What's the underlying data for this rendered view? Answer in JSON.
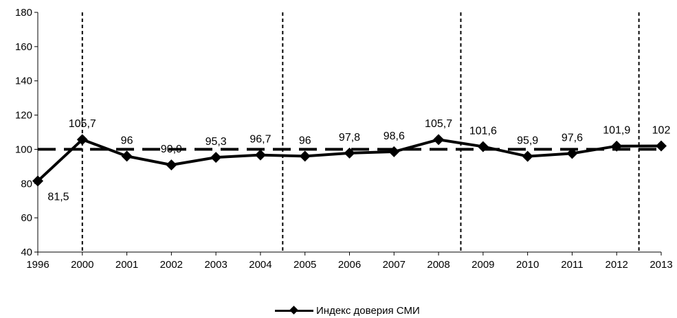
{
  "chart_data": {
    "type": "line",
    "categories": [
      "1996",
      "2000",
      "2001",
      "2002",
      "2003",
      "2004",
      "2005",
      "2006",
      "2007",
      "2008",
      "2009",
      "2010",
      "2011",
      "2012",
      "2013"
    ],
    "series": [
      {
        "name": "Индекс доверия СМИ",
        "values": [
          81.5,
          105.7,
          96,
          90.9,
          95.3,
          96.7,
          96,
          97.8,
          98.6,
          105.7,
          101.6,
          95.9,
          97.6,
          101.9,
          102
        ],
        "labels": [
          "81,5",
          "105,7",
          "96",
          "90,9",
          "95,3",
          "96,7",
          "96",
          "97,8",
          "98,6",
          "105,7",
          "101,6",
          "95,9",
          "97,6",
          "101,9",
          "102"
        ],
        "color": "#000000",
        "marker": "diamond"
      }
    ],
    "ylim": [
      40,
      180
    ],
    "yticks": [
      40,
      60,
      80,
      100,
      120,
      140,
      160,
      180
    ],
    "reference_line": {
      "y": 100,
      "style": "long-dash"
    },
    "vertical_dividers_after": [
      "1996",
      "2004",
      "2008",
      "2012"
    ],
    "grid": false,
    "legend": {
      "position": "bottom-center"
    },
    "title": "",
    "xlabel": "",
    "ylabel": ""
  }
}
